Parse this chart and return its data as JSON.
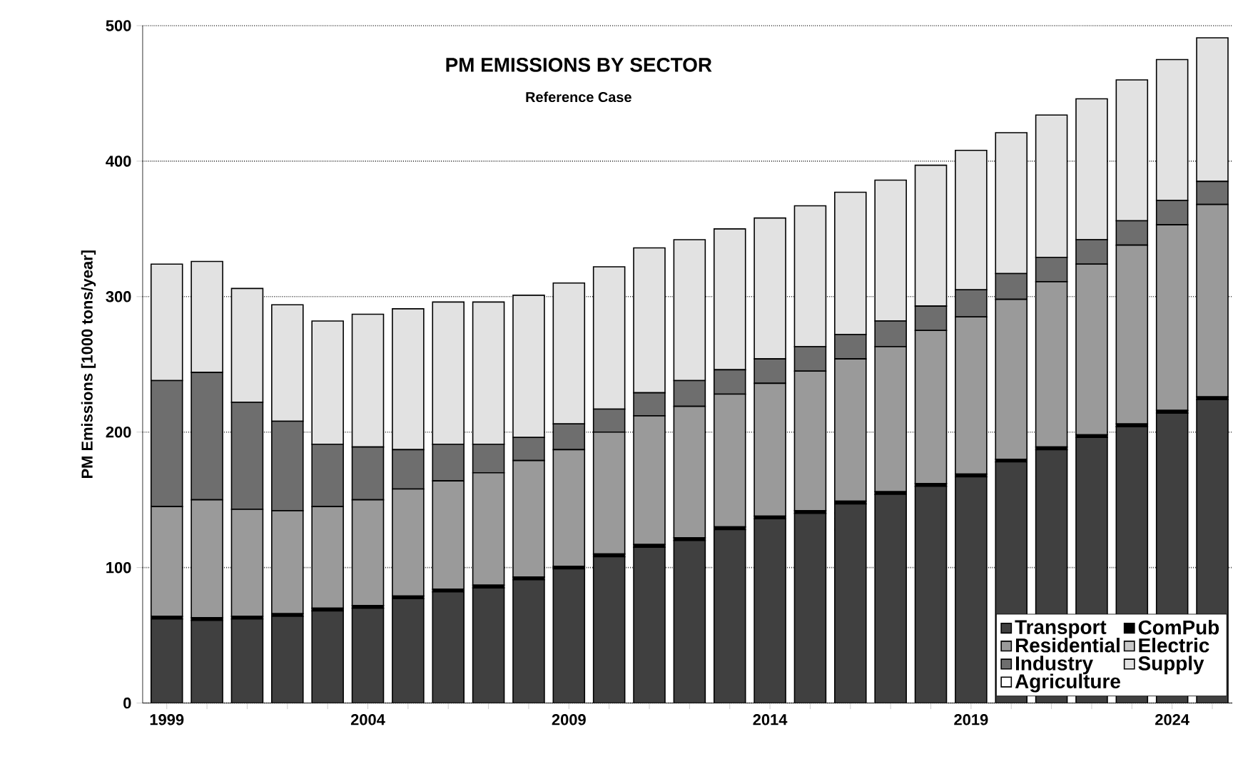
{
  "chart_data": {
    "type": "bar",
    "stacked": true,
    "title": "PM EMISSIONS BY SECTOR",
    "subtitle": "Reference Case",
    "ylabel": "PM Emissions [1000 tons/year]",
    "categories": [
      "1999",
      null,
      null,
      null,
      null,
      "2004",
      null,
      null,
      null,
      null,
      "2009",
      null,
      null,
      null,
      null,
      "2014",
      null,
      null,
      null,
      null,
      "2019",
      null,
      null,
      null,
      null,
      "2024",
      null
    ],
    "ylim": [
      0,
      500
    ],
    "yticks": [
      0,
      100,
      200,
      300,
      400,
      500
    ],
    "grid": "y",
    "legend": "bottom right",
    "series": [
      {
        "name": "Transport",
        "color": "#404040",
        "values": [
          62,
          61,
          62,
          64,
          68,
          70,
          77,
          82,
          85,
          91,
          99,
          108,
          115,
          120,
          128,
          136,
          140,
          147,
          154,
          160,
          167,
          178,
          187,
          196,
          204,
          214,
          224
        ]
      },
      {
        "name": "ComPub",
        "color": "#000000",
        "values": [
          2,
          2,
          2,
          2,
          2,
          2,
          2,
          2,
          2,
          2,
          2,
          2,
          2,
          2,
          2,
          2,
          2,
          2,
          2,
          2,
          2,
          2,
          2,
          2,
          2,
          2,
          2
        ]
      },
      {
        "name": "Residential",
        "color": "#9a9a9a",
        "values": [
          81,
          87,
          79,
          76,
          75,
          78,
          79,
          80,
          83,
          86,
          86,
          90,
          95,
          97,
          98,
          98,
          103,
          105,
          107,
          113,
          116,
          118,
          122,
          126,
          132,
          137,
          142
        ]
      },
      {
        "name": "Electric",
        "color": "#c8c8c8",
        "values": [
          0,
          0,
          0,
          0,
          0,
          0,
          0,
          0,
          0,
          0,
          0,
          0,
          0,
          0,
          0,
          0,
          0,
          0,
          0,
          0,
          0,
          0,
          0,
          0,
          0,
          0,
          0
        ]
      },
      {
        "name": "Industry",
        "color": "#6e6e6e",
        "values": [
          93,
          94,
          79,
          66,
          46,
          39,
          29,
          27,
          21,
          17,
          19,
          17,
          17,
          19,
          18,
          18,
          18,
          18,
          19,
          18,
          20,
          19,
          18,
          18,
          18,
          18,
          17
        ]
      },
      {
        "name": "Supply",
        "color": "#e2e2e2",
        "values": [
          86,
          82,
          84,
          86,
          91,
          98,
          104,
          105,
          105,
          105,
          104,
          105,
          107,
          104,
          104,
          104,
          104,
          105,
          104,
          104,
          103,
          104,
          105,
          104,
          104,
          104,
          106
        ]
      },
      {
        "name": "Agriculture",
        "color": "#ffffff",
        "values": [
          0,
          0,
          0,
          0,
          0,
          0,
          0,
          0,
          0,
          0,
          0,
          0,
          0,
          0,
          0,
          0,
          0,
          0,
          0,
          0,
          0,
          0,
          0,
          0,
          0,
          0,
          0
        ]
      }
    ]
  }
}
